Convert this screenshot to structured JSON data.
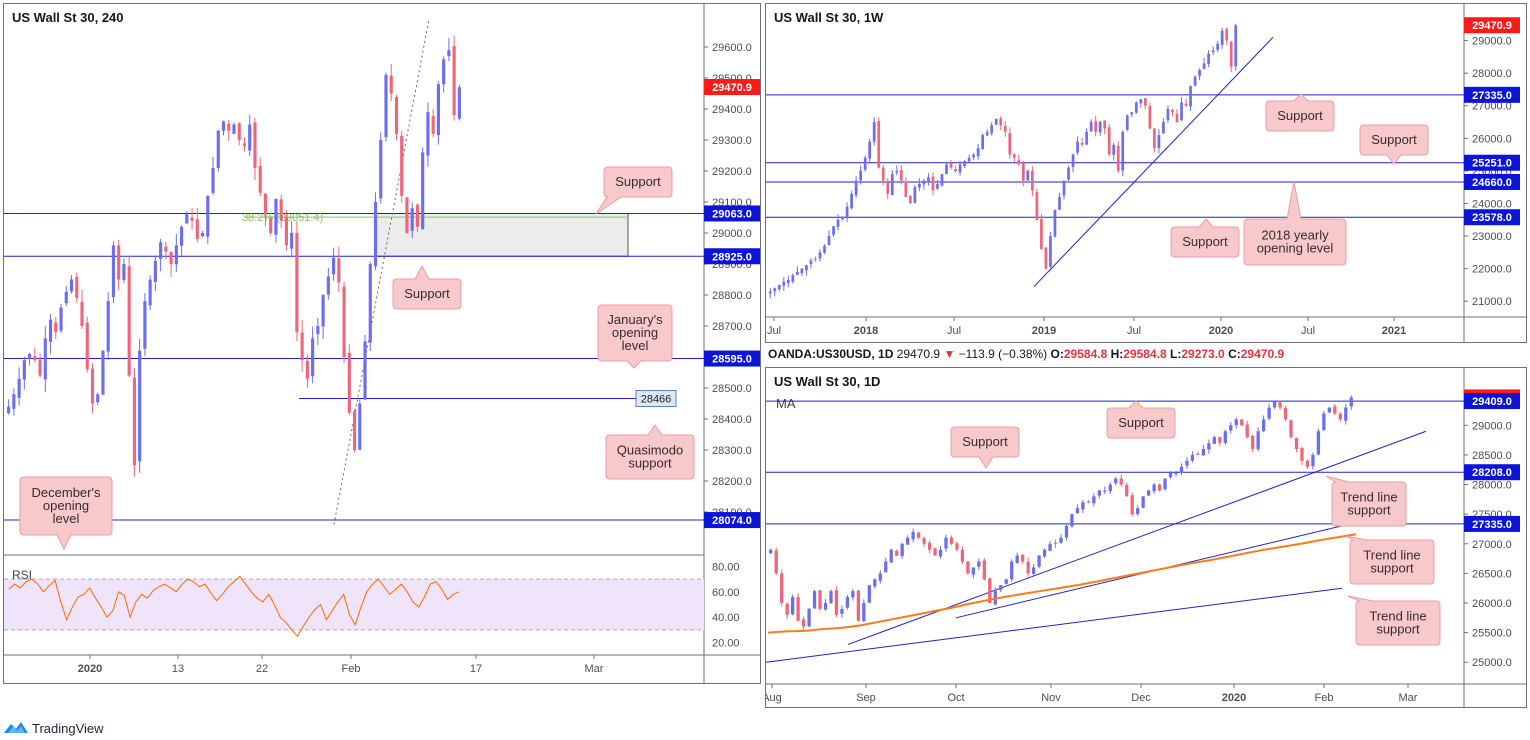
{
  "brand": {
    "name": "TradingView"
  },
  "colors": {
    "up": "#6b6ef0",
    "down": "#f0657a",
    "level": "#2222cc",
    "current": "#ff1a1a",
    "rsi": "#ff6a00",
    "ma": "#ff7b1a",
    "fib": "#8ac45e",
    "callout_bg": "#f7c9cb",
    "callout_border": "#e89ea2"
  },
  "ohlc_bar": {
    "symbol": "OANDA:US30USD, 1D",
    "last": "29470.9",
    "change": "−113.9 (−0.38%)",
    "o_label": "O:",
    "o": "29584.8",
    "h_label": "H:",
    "h": "29584.8",
    "l_label": "L:",
    "l": "29273.0",
    "c_label": "C:",
    "c": "29470.9",
    "down_arrow": "▼"
  },
  "chart_data": [
    {
      "id": "h4",
      "type": "candlestick",
      "title": "US Wall St 30, 240",
      "ylim": [
        28000,
        29700
      ],
      "y_ticks": [
        "29600.0",
        "29500.0",
        "29400.0",
        "29300.0",
        "29200.0",
        "29100.0",
        "29000.0",
        "28900.0",
        "28800.0",
        "28700.0",
        "28600.0",
        "28500.0",
        "28400.0",
        "28300.0",
        "28200.0",
        "28100.0"
      ],
      "x_ticks": [
        "2020",
        "13",
        "22",
        "Feb",
        "17",
        "Mar"
      ],
      "price_labels": [
        {
          "text": "29470.9",
          "value": 29470.9,
          "kind": "current"
        },
        {
          "text": "29063.0",
          "value": 29063.0,
          "kind": "level"
        },
        {
          "text": "28925.0",
          "value": 28925.0,
          "kind": "level"
        },
        {
          "text": "28595.0",
          "value": 28595.0,
          "kind": "level"
        },
        {
          "text": "28074.0",
          "value": 28074.0,
          "kind": "level"
        }
      ],
      "horizontal_levels": [
        29063.0,
        28925.0,
        28595.0,
        28074.0
      ],
      "fib_label": "38.2% (29051.4)",
      "quasimodo_tag": "28466",
      "series_close": [
        28440,
        28480,
        28530,
        28590,
        28610,
        28590,
        28540,
        28660,
        28720,
        28680,
        28760,
        28810,
        28850,
        28790,
        28700,
        28560,
        28450,
        28480,
        28620,
        28780,
        28960,
        28850,
        28900,
        28540,
        28250,
        28620,
        28780,
        28850,
        28910,
        28970,
        28940,
        28900,
        28960,
        29020,
        29060,
        29040,
        28980,
        29000,
        29120,
        29210,
        29330,
        29360,
        29330,
        29350,
        29300,
        29280,
        29350,
        29210,
        29130,
        29060,
        29000,
        29110,
        29040,
        28960,
        29000,
        28680,
        28590,
        28530,
        28660,
        28700,
        28800,
        28860,
        28920,
        28840,
        28600,
        28420,
        28300,
        28450,
        28650,
        28900,
        29100,
        29300,
        29510,
        29450,
        29320,
        29120,
        29000,
        29080,
        29020,
        29260,
        29390,
        29320,
        29480,
        29560,
        29590,
        29380,
        29470
      ],
      "annotations": [
        "Support",
        "Support",
        "January's opening level",
        "Quasimodo support",
        "December's opening level"
      ],
      "rsi": {
        "label": "RSI",
        "ylim": [
          15,
          85
        ],
        "y_ticks": [
          "80.00",
          "60.00",
          "40.00",
          "20.00"
        ],
        "upper": 70,
        "lower": 30,
        "values": [
          62,
          66,
          63,
          68,
          70,
          66,
          60,
          65,
          69,
          52,
          38,
          48,
          56,
          58,
          63,
          55,
          48,
          40,
          45,
          60,
          57,
          40,
          52,
          58,
          55,
          61,
          64,
          66,
          63,
          60,
          66,
          70,
          68,
          64,
          66,
          59,
          53,
          58,
          64,
          68,
          72,
          66,
          60,
          55,
          52,
          58,
          50,
          40,
          36,
          30,
          25,
          33,
          40,
          46,
          50,
          38,
          45,
          52,
          58,
          42,
          34,
          48,
          60,
          66,
          70,
          64,
          58,
          62,
          66,
          60,
          52,
          48,
          56,
          66,
          68,
          62,
          54,
          58,
          60
        ]
      }
    },
    {
      "id": "weekly",
      "type": "candlestick",
      "title": "US Wall St 30, 1W",
      "ylim": [
        20700,
        30000
      ],
      "y_ticks": [
        "30000.0",
        "29000.0",
        "28000.0",
        "27000.0",
        "26000.0",
        "25000.0",
        "24000.0",
        "23000.0",
        "22000.0",
        "21000.0"
      ],
      "x_ticks": [
        "Jul",
        "2018",
        "Jul",
        "2019",
        "Jul",
        "2020",
        "Jul",
        "2021"
      ],
      "price_labels": [
        {
          "text": "29470.9",
          "value": 29470.9,
          "kind": "current"
        },
        {
          "text": "27335.0",
          "value": 27335.0,
          "kind": "level"
        },
        {
          "text": "25251.0",
          "value": 25251.0,
          "kind": "level"
        },
        {
          "text": "24660.0",
          "value": 24660.0,
          "kind": "level"
        },
        {
          "text": "23578.0",
          "value": 23578.0,
          "kind": "level"
        }
      ],
      "horizontal_levels": [
        27335.0,
        25251.0,
        24660.0,
        23578.0
      ],
      "series_close": [
        21300,
        21400,
        21500,
        21600,
        21650,
        21800,
        21900,
        22000,
        22100,
        22250,
        22300,
        22500,
        22700,
        23000,
        23300,
        23500,
        23600,
        23900,
        24300,
        24700,
        25000,
        25400,
        25900,
        26500,
        25100,
        24700,
        24300,
        24900,
        25000,
        24700,
        24200,
        24000,
        24500,
        24600,
        24700,
        24800,
        24400,
        24600,
        24900,
        25200,
        25100,
        25000,
        25200,
        25300,
        25400,
        25500,
        25700,
        26100,
        26200,
        26400,
        26600,
        26400,
        26200,
        25500,
        25400,
        25200,
        24700,
        25000,
        24400,
        23500,
        22600,
        22000,
        23000,
        23800,
        24200,
        24700,
        25100,
        25500,
        25900,
        25800,
        26200,
        26500,
        26200,
        26500,
        26300,
        25500,
        25800,
        25000,
        26200,
        26700,
        26800,
        27100,
        27200,
        27000,
        26300,
        25700,
        26100,
        26500,
        26900,
        26800,
        26500,
        27100,
        27000,
        27600,
        27900,
        28100,
        28300,
        28600,
        28700,
        28900,
        29300,
        29000,
        28200,
        29470
      ]
    },
    {
      "id": "daily",
      "type": "candlestick",
      "title": "US Wall St 30, 1D",
      "legend": "MA",
      "ylim": [
        24700,
        29900
      ],
      "y_ticks": [
        "29500.0",
        "29000.0",
        "28500.0",
        "28000.0",
        "27500.0",
        "27000.0",
        "26500.0",
        "26000.0",
        "25500.0",
        "25000.0"
      ],
      "x_ticks": [
        "Aug",
        "Sep",
        "Oct",
        "Nov",
        "Dec",
        "2020",
        "Feb",
        "Mar"
      ],
      "price_labels": [
        {
          "text": "29470.9",
          "value": 29470.9,
          "kind": "current"
        },
        {
          "text": "29409.0",
          "value": 29409.0,
          "kind": "level"
        },
        {
          "text": "28208.0",
          "value": 28208.0,
          "kind": "level"
        },
        {
          "text": "27335.0",
          "value": 27335.0,
          "kind": "level"
        }
      ],
      "horizontal_levels": [
        29409.0,
        28208.0,
        27335.0
      ],
      "series_close": [
        26900,
        26500,
        26000,
        25800,
        26100,
        25700,
        25600,
        25900,
        26200,
        25900,
        26000,
        26200,
        25800,
        25900,
        26100,
        26200,
        25700,
        26000,
        26300,
        26400,
        26500,
        26700,
        26900,
        26800,
        27000,
        27100,
        27200,
        27100,
        27000,
        26900,
        26800,
        26900,
        27100,
        27000,
        26900,
        26700,
        26500,
        26600,
        26700,
        26400,
        26000,
        26200,
        26300,
        26400,
        26700,
        26800,
        26700,
        26500,
        26600,
        26800,
        26900,
        27000,
        27000,
        27100,
        27300,
        27500,
        27600,
        27700,
        27700,
        27800,
        27900,
        27900,
        28000,
        28100,
        28000,
        27800,
        27500,
        27600,
        27800,
        27900,
        28000,
        27900,
        28100,
        28200,
        28200,
        28300,
        28400,
        28500,
        28500,
        28600,
        28700,
        28800,
        28700,
        28900,
        29000,
        29100,
        29000,
        28800,
        28600,
        28900,
        29100,
        29300,
        29400,
        29300,
        29100,
        28800,
        28600,
        28400,
        28300,
        28500,
        28900,
        29200,
        29300,
        29200,
        29100,
        29300,
        29470
      ],
      "ma_values": [
        25500,
        25520,
        25530,
        25560,
        25580,
        25620,
        25680,
        25740,
        25800,
        25860,
        25920,
        25990,
        26050,
        26110,
        26160,
        26210,
        26260,
        26310,
        26370,
        26430,
        26490,
        26550,
        26610,
        26670,
        26720,
        26780,
        26840,
        26900,
        26950,
        27000,
        27060,
        27110,
        27160
      ]
    }
  ],
  "callouts": {
    "h4_support_top": "Support",
    "h4_support_bottom": "Support",
    "h4_jan": "January's\nopening\nlevel",
    "h4_qm": "Quasimodo\nsupport",
    "h4_dec": "December's\nopening\nlevel",
    "w_support_1": "Support",
    "w_support_2": "Support",
    "w_support_3": "Support",
    "w_yearly": "2018 yearly\nopening level",
    "d_support_1": "Support",
    "d_support_2": "Support",
    "d_tl_1": "Trend line\nsupport",
    "d_tl_2": "Trend line\nsupport",
    "d_tl_3": "Trend line\nsupport"
  }
}
